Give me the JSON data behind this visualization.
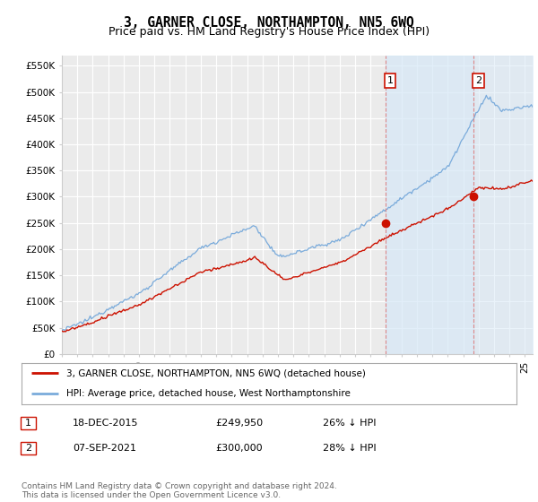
{
  "title": "3, GARNER CLOSE, NORTHAMPTON, NN5 6WQ",
  "subtitle": "Price paid vs. HM Land Registry's House Price Index (HPI)",
  "ylabel_ticks": [
    "£0",
    "£50K",
    "£100K",
    "£150K",
    "£200K",
    "£250K",
    "£300K",
    "£350K",
    "£400K",
    "£450K",
    "£500K",
    "£550K"
  ],
  "ytick_values": [
    0,
    50000,
    100000,
    150000,
    200000,
    250000,
    300000,
    350000,
    400000,
    450000,
    500000,
    550000
  ],
  "xlim_start": 1995.0,
  "xlim_end": 2025.5,
  "ylim_min": 0,
  "ylim_max": 570000,
  "background_color": "#ffffff",
  "plot_bg_color": "#ebebeb",
  "grid_color": "#ffffff",
  "hpi_color": "#7aabdb",
  "hpi_fill_color": "#d6e8f7",
  "price_color": "#cc1100",
  "vline_color": "#dd8888",
  "marker1_date": 2015.96,
  "marker2_date": 2021.68,
  "marker1_price": 249950,
  "marker2_price": 300000,
  "legend_entries": [
    "3, GARNER CLOSE, NORTHAMPTON, NN5 6WQ (detached house)",
    "HPI: Average price, detached house, West Northamptonshire"
  ],
  "table_row1": [
    "1",
    "18-DEC-2015",
    "£249,950",
    "26% ↓ HPI"
  ],
  "table_row2": [
    "2",
    "07-SEP-2021",
    "£300,000",
    "28% ↓ HPI"
  ],
  "footer_text": "Contains HM Land Registry data © Crown copyright and database right 2024.\nThis data is licensed under the Open Government Licence v3.0.",
  "title_fontsize": 10.5,
  "subtitle_fontsize": 9,
  "tick_fontsize": 7.5,
  "legend_fontsize": 7.5,
  "table_fontsize": 8,
  "footer_fontsize": 6.5
}
